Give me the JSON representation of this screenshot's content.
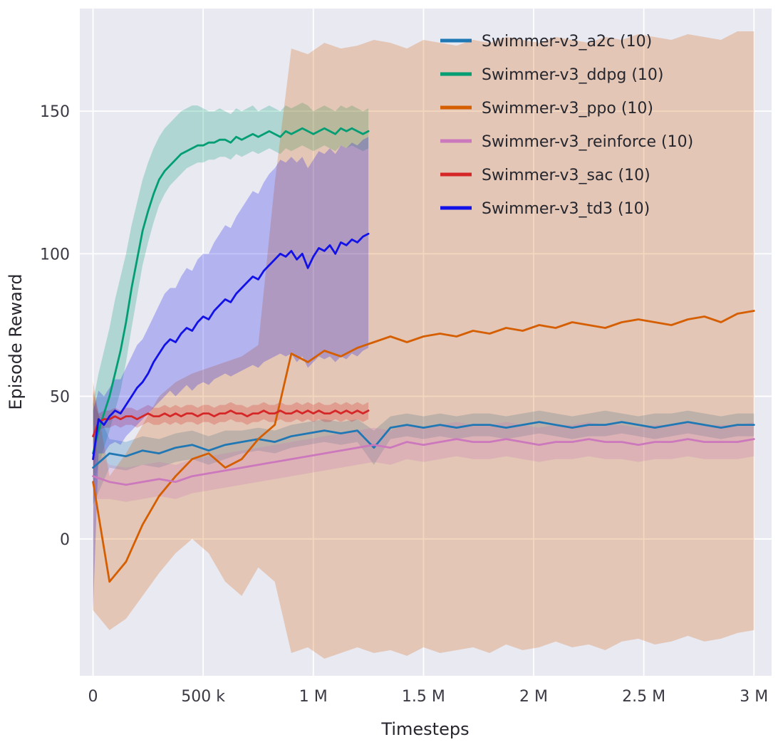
{
  "chart_data": {
    "type": "line",
    "title": "",
    "xlabel": "Timesteps",
    "ylabel": "Episode Reward",
    "x_units": "millions of timesteps",
    "xlim": [
      -0.06,
      3.08
    ],
    "ylim": [
      -48,
      186
    ],
    "grid": true,
    "legend_position": "upper right",
    "x_ticks": {
      "values": [
        0,
        0.5,
        1,
        1.5,
        2,
        2.5,
        3
      ],
      "labels": [
        "0",
        "500 k",
        "1 M",
        "1.5 M",
        "2 M",
        "2.5 M",
        "3 M"
      ]
    },
    "y_ticks": {
      "values": [
        0,
        50,
        100,
        150
      ],
      "labels": [
        "0",
        "50",
        "100",
        "150"
      ]
    },
    "styles": {
      "plot_bg": "#e9e9f2",
      "grid_color": "#ffffff",
      "band_opacity": 0.25,
      "line_width": 2.8
    },
    "series": [
      {
        "name": "Swimmer-v3_a2c (10)",
        "color": "#1f77b4",
        "x": [
          0,
          0.075,
          0.15,
          0.225,
          0.3,
          0.375,
          0.45,
          0.525,
          0.6,
          0.675,
          0.75,
          0.825,
          0.9,
          0.975,
          1.05,
          1.125,
          1.2,
          1.275,
          1.35,
          1.425,
          1.5,
          1.575,
          1.65,
          1.725,
          1.8,
          1.875,
          1.95,
          2.025,
          2.1,
          2.175,
          2.25,
          2.325,
          2.4,
          2.475,
          2.55,
          2.625,
          2.7,
          2.775,
          2.85,
          2.925,
          3
        ],
        "y": [
          25,
          30,
          29,
          31,
          30,
          32,
          33,
          31,
          33,
          34,
          35,
          34,
          36,
          37,
          38,
          37,
          38,
          32,
          39,
          40,
          39,
          40,
          39,
          40,
          40,
          39,
          40,
          41,
          40,
          39,
          40,
          40,
          41,
          40,
          39,
          40,
          41,
          40,
          39,
          40,
          40
        ],
        "band_low": [
          12,
          25,
          24,
          26,
          25,
          27,
          28,
          26,
          28,
          30,
          31,
          30,
          32,
          33,
          34,
          33,
          34,
          26,
          35,
          36,
          35,
          36,
          35,
          36,
          36,
          35,
          36,
          37,
          36,
          35,
          36,
          36,
          37,
          36,
          35,
          36,
          37,
          36,
          35,
          36,
          36
        ],
        "band_high": [
          48,
          35,
          34,
          36,
          35,
          37,
          38,
          36,
          38,
          38,
          39,
          38,
          40,
          41,
          42,
          41,
          42,
          38,
          43,
          44,
          43,
          44,
          43,
          44,
          44,
          43,
          44,
          45,
          44,
          43,
          44,
          45,
          44,
          43,
          44,
          44,
          45,
          44,
          43,
          44,
          44
        ]
      },
      {
        "name": "Swimmer-v3_ddpg (10)",
        "color": "#029e73",
        "x": [
          0,
          0.025,
          0.05,
          0.075,
          0.1,
          0.125,
          0.15,
          0.175,
          0.2,
          0.225,
          0.25,
          0.275,
          0.3,
          0.325,
          0.35,
          0.375,
          0.4,
          0.425,
          0.45,
          0.475,
          0.5,
          0.525,
          0.55,
          0.575,
          0.6,
          0.625,
          0.65,
          0.675,
          0.7,
          0.725,
          0.75,
          0.775,
          0.8,
          0.825,
          0.85,
          0.875,
          0.9,
          0.925,
          0.95,
          0.975,
          1,
          1.025,
          1.05,
          1.075,
          1.1,
          1.125,
          1.15,
          1.175,
          1.2,
          1.225,
          1.25
        ],
        "y": [
          30,
          38,
          44,
          50,
          58,
          66,
          76,
          88,
          98,
          108,
          115,
          121,
          126,
          129,
          131,
          133,
          135,
          136,
          137,
          138,
          138,
          139,
          139,
          140,
          140,
          139,
          141,
          140,
          141,
          142,
          141,
          142,
          143,
          142,
          141,
          143,
          142,
          143,
          144,
          143,
          142,
          143,
          144,
          143,
          142,
          144,
          143,
          144,
          143,
          142,
          143
        ],
        "band_low": [
          18,
          26,
          32,
          38,
          45,
          52,
          62,
          74,
          85,
          96,
          104,
          111,
          117,
          121,
          124,
          126,
          128,
          130,
          131,
          132,
          132,
          133,
          133,
          134,
          134,
          133,
          135,
          134,
          135,
          136,
          135,
          136,
          137,
          136,
          135,
          137,
          136,
          137,
          138,
          137,
          136,
          137,
          138,
          137,
          136,
          138,
          137,
          138,
          137,
          136,
          137
        ],
        "band_high": [
          48,
          58,
          66,
          74,
          84,
          92,
          100,
          110,
          118,
          126,
          132,
          137,
          141,
          144,
          146,
          148,
          150,
          151,
          152,
          152,
          151,
          150,
          150,
          151,
          150,
          149,
          151,
          150,
          151,
          152,
          150,
          151,
          152,
          151,
          150,
          152,
          151,
          152,
          153,
          152,
          150,
          151,
          152,
          151,
          150,
          152,
          151,
          152,
          151,
          150,
          151
        ]
      },
      {
        "name": "Swimmer-v3_ppo (10)",
        "color": "#d55e00",
        "x": [
          0,
          0.075,
          0.15,
          0.225,
          0.3,
          0.375,
          0.45,
          0.525,
          0.6,
          0.675,
          0.75,
          0.825,
          0.9,
          0.975,
          1.05,
          1.125,
          1.2,
          1.275,
          1.35,
          1.425,
          1.5,
          1.575,
          1.65,
          1.725,
          1.8,
          1.875,
          1.95,
          2.025,
          2.1,
          2.175,
          2.25,
          2.325,
          2.4,
          2.475,
          2.55,
          2.625,
          2.7,
          2.775,
          2.85,
          2.925,
          3
        ],
        "y": [
          20,
          -15,
          -8,
          5,
          15,
          22,
          28,
          30,
          25,
          28,
          35,
          40,
          65,
          62,
          66,
          64,
          67,
          69,
          71,
          69,
          71,
          72,
          71,
          73,
          72,
          74,
          73,
          75,
          74,
          76,
          75,
          74,
          76,
          77,
          76,
          75,
          77,
          78,
          76,
          79,
          80
        ],
        "band_low": [
          -25,
          -32,
          -28,
          -20,
          -12,
          -5,
          0,
          -5,
          -15,
          -20,
          -10,
          -15,
          -40,
          -38,
          -42,
          -40,
          -38,
          -40,
          -39,
          -41,
          -38,
          -40,
          -39,
          -38,
          -40,
          -37,
          -39,
          -38,
          -36,
          -38,
          -37,
          -39,
          -36,
          -35,
          -37,
          -36,
          -34,
          -36,
          -35,
          -33,
          -32
        ],
        "band_high": [
          55,
          22,
          30,
          40,
          50,
          55,
          58,
          60,
          62,
          64,
          68,
          125,
          172,
          170,
          174,
          172,
          173,
          175,
          174,
          172,
          175,
          174,
          173,
          175,
          174,
          176,
          175,
          174,
          176,
          175,
          174,
          176,
          175,
          177,
          176,
          175,
          177,
          176,
          175,
          178,
          178
        ]
      },
      {
        "name": "Swimmer-v3_reinforce (10)",
        "color": "#cc78bc",
        "x": [
          0,
          0.075,
          0.15,
          0.225,
          0.3,
          0.375,
          0.45,
          0.525,
          0.6,
          0.675,
          0.75,
          0.825,
          0.9,
          0.975,
          1.05,
          1.125,
          1.2,
          1.275,
          1.35,
          1.425,
          1.5,
          1.575,
          1.65,
          1.725,
          1.8,
          1.875,
          1.95,
          2.025,
          2.1,
          2.175,
          2.25,
          2.325,
          2.4,
          2.475,
          2.55,
          2.625,
          2.7,
          2.775,
          2.85,
          2.925,
          3
        ],
        "y": [
          22,
          20,
          19,
          20,
          21,
          20,
          22,
          23,
          24,
          25,
          26,
          27,
          28,
          29,
          30,
          31,
          32,
          33,
          32,
          34,
          33,
          34,
          35,
          34,
          34,
          35,
          34,
          33,
          34,
          34,
          35,
          34,
          34,
          33,
          34,
          34,
          35,
          34,
          34,
          34,
          35
        ],
        "band_low": [
          14,
          14,
          13,
          14,
          15,
          14,
          16,
          17,
          18,
          19,
          20,
          21,
          22,
          23,
          24,
          25,
          26,
          27,
          26,
          28,
          27,
          28,
          29,
          28,
          28,
          29,
          28,
          27,
          28,
          28,
          29,
          28,
          28,
          27,
          28,
          28,
          29,
          28,
          28,
          28,
          29
        ],
        "band_high": [
          32,
          26,
          25,
          26,
          27,
          26,
          28,
          29,
          30,
          31,
          32,
          33,
          34,
          35,
          36,
          37,
          38,
          39,
          38,
          40,
          39,
          40,
          41,
          40,
          40,
          41,
          40,
          39,
          40,
          40,
          41,
          40,
          40,
          39,
          40,
          40,
          41,
          40,
          40,
          40,
          41
        ]
      },
      {
        "name": "Swimmer-v3_sac (10)",
        "color": "#d62728",
        "x": [
          0,
          0.025,
          0.05,
          0.075,
          0.1,
          0.125,
          0.15,
          0.175,
          0.2,
          0.225,
          0.25,
          0.275,
          0.3,
          0.325,
          0.35,
          0.375,
          0.4,
          0.425,
          0.45,
          0.475,
          0.5,
          0.525,
          0.55,
          0.575,
          0.6,
          0.625,
          0.65,
          0.675,
          0.7,
          0.725,
          0.75,
          0.775,
          0.8,
          0.825,
          0.85,
          0.875,
          0.9,
          0.925,
          0.95,
          0.975,
          1,
          1.025,
          1.05,
          1.075,
          1.1,
          1.125,
          1.15,
          1.175,
          1.2,
          1.225,
          1.25
        ],
        "y": [
          36,
          41,
          42,
          42,
          43,
          42,
          43,
          43,
          42,
          43,
          44,
          43,
          43,
          44,
          43,
          44,
          43,
          44,
          44,
          43,
          44,
          44,
          43,
          44,
          44,
          45,
          44,
          44,
          43,
          44,
          44,
          45,
          44,
          44,
          45,
          44,
          44,
          45,
          44,
          45,
          44,
          45,
          44,
          44,
          45,
          44,
          45,
          44,
          45,
          44,
          45
        ],
        "band_low": [
          20,
          38,
          39,
          39,
          40,
          39,
          40,
          40,
          39,
          40,
          41,
          40,
          40,
          41,
          40,
          41,
          40,
          41,
          41,
          40,
          41,
          41,
          40,
          41,
          41,
          42,
          41,
          41,
          40,
          41,
          41,
          42,
          41,
          41,
          42,
          41,
          41,
          42,
          41,
          42,
          41,
          42,
          41,
          41,
          42,
          41,
          42,
          41,
          42,
          41,
          42
        ],
        "band_high": [
          52,
          44,
          45,
          45,
          46,
          45,
          46,
          46,
          45,
          46,
          47,
          46,
          46,
          47,
          46,
          47,
          46,
          47,
          47,
          46,
          47,
          47,
          46,
          47,
          47,
          48,
          47,
          47,
          46,
          47,
          47,
          48,
          47,
          47,
          48,
          47,
          47,
          48,
          47,
          48,
          47,
          48,
          47,
          47,
          48,
          47,
          48,
          47,
          48,
          47,
          48
        ]
      },
      {
        "name": "Swimmer-v3_td3 (10)",
        "color": "#1212e8",
        "x": [
          0,
          0.025,
          0.05,
          0.075,
          0.1,
          0.125,
          0.15,
          0.175,
          0.2,
          0.225,
          0.25,
          0.275,
          0.3,
          0.325,
          0.35,
          0.375,
          0.4,
          0.425,
          0.45,
          0.475,
          0.5,
          0.525,
          0.55,
          0.575,
          0.6,
          0.625,
          0.65,
          0.675,
          0.7,
          0.725,
          0.75,
          0.775,
          0.8,
          0.825,
          0.85,
          0.875,
          0.9,
          0.925,
          0.95,
          0.975,
          1,
          1.025,
          1.05,
          1.075,
          1.1,
          1.125,
          1.15,
          1.175,
          1.2,
          1.225,
          1.25
        ],
        "y": [
          28,
          42,
          40,
          43,
          45,
          44,
          47,
          50,
          53,
          55,
          58,
          62,
          65,
          68,
          70,
          69,
          72,
          74,
          73,
          76,
          78,
          77,
          80,
          82,
          84,
          83,
          86,
          88,
          90,
          92,
          91,
          94,
          96,
          98,
          100,
          99,
          101,
          98,
          100,
          95,
          99,
          102,
          101,
          103,
          100,
          104,
          103,
          105,
          104,
          106,
          107
        ],
        "band_low": [
          -25,
          30,
          30,
          33,
          34,
          33,
          36,
          38,
          40,
          42,
          44,
          46,
          48,
          50,
          52,
          50,
          52,
          54,
          52,
          54,
          55,
          54,
          56,
          57,
          58,
          57,
          58,
          59,
          60,
          61,
          60,
          62,
          63,
          64,
          65,
          64,
          65,
          62,
          64,
          60,
          62,
          64,
          63,
          64,
          62,
          64,
          63,
          65,
          64,
          66,
          67
        ],
        "band_high": [
          45,
          52,
          50,
          53,
          56,
          56,
          60,
          64,
          68,
          70,
          74,
          78,
          82,
          86,
          88,
          88,
          92,
          95,
          94,
          98,
          100,
          100,
          104,
          107,
          110,
          109,
          113,
          116,
          119,
          122,
          121,
          125,
          128,
          130,
          133,
          132,
          134,
          132,
          134,
          130,
          133,
          136,
          135,
          137,
          135,
          138,
          137,
          139,
          138,
          140,
          141
        ]
      }
    ]
  }
}
